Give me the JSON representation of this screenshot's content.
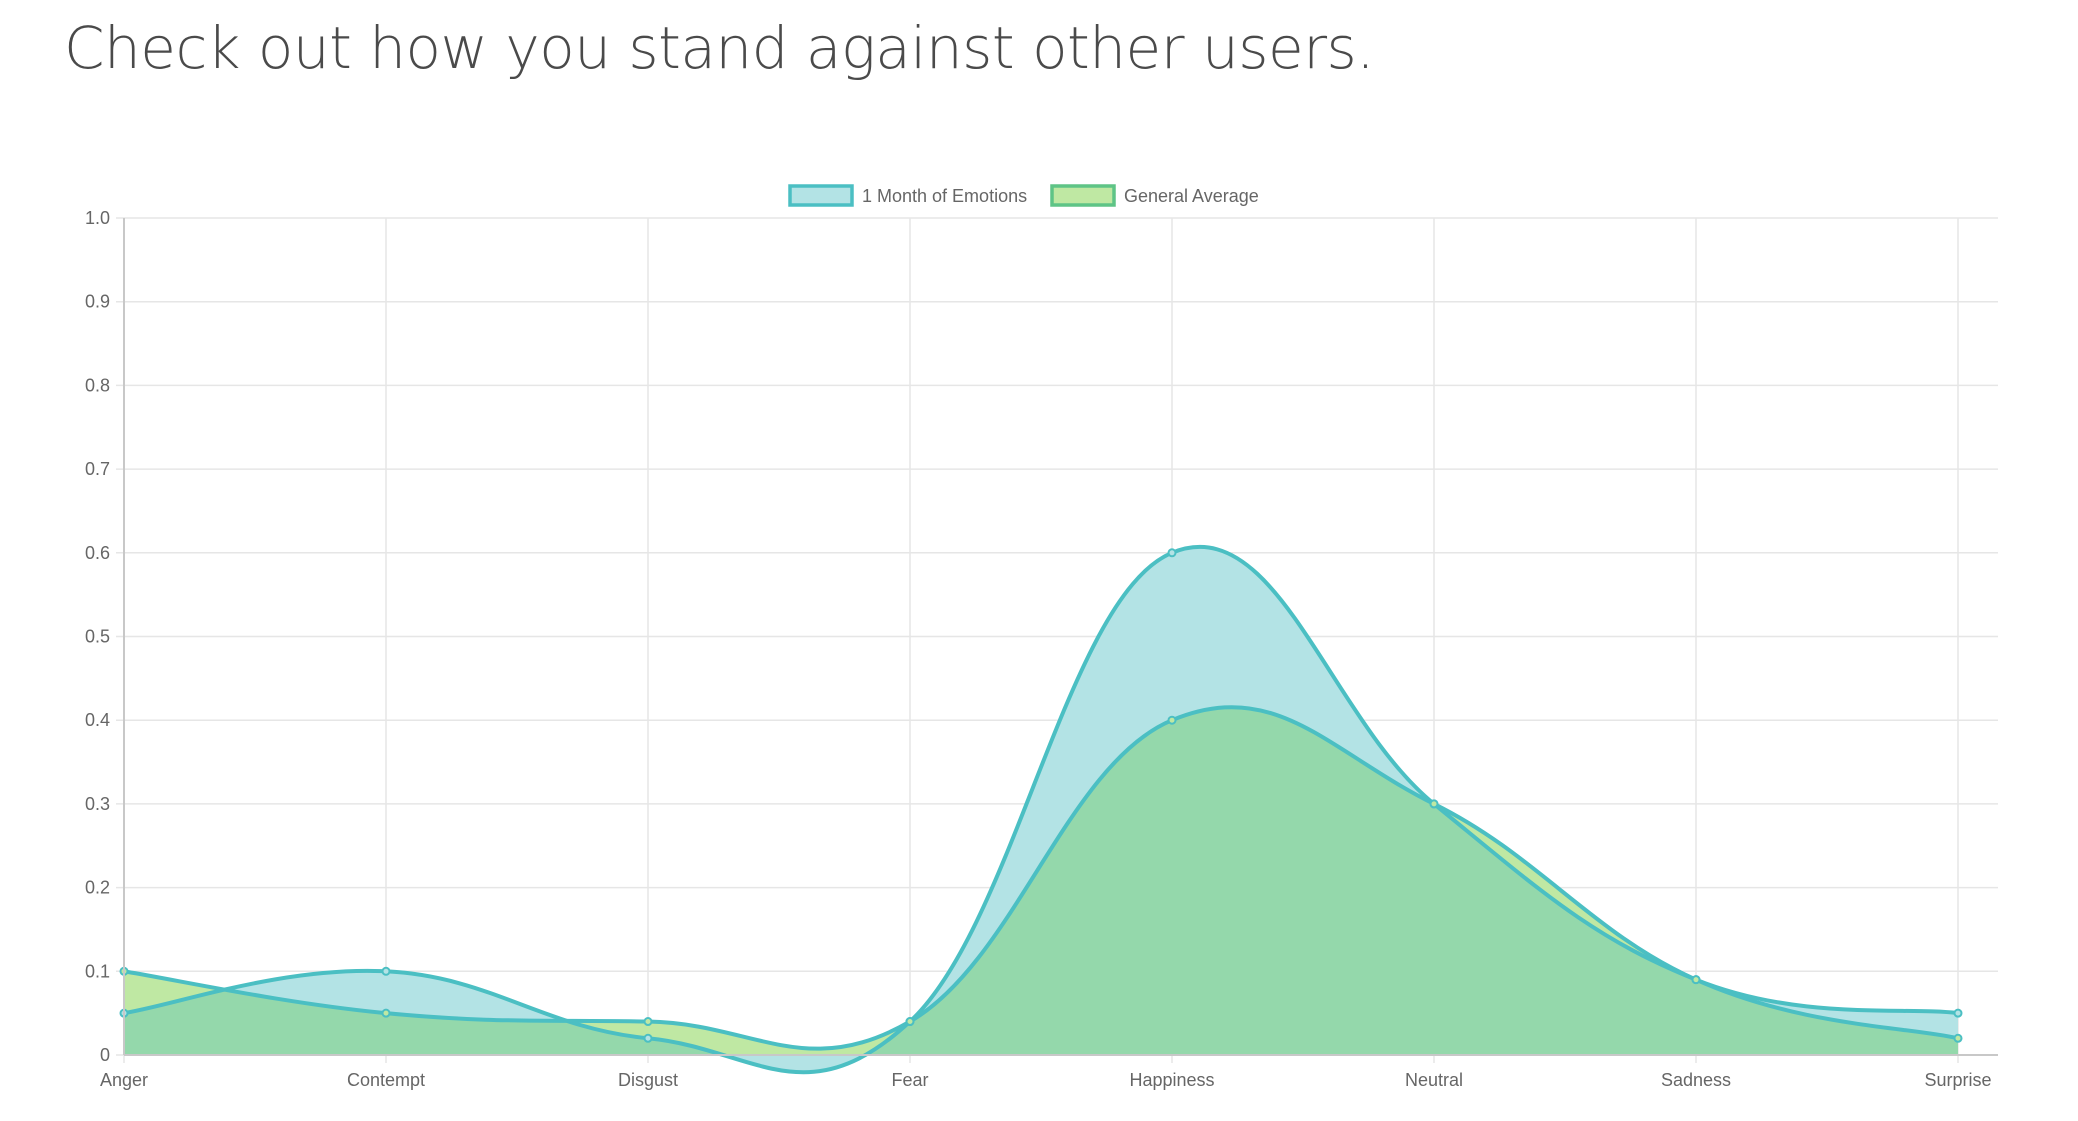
{
  "page": {
    "heading": "Check out how you stand against other users."
  },
  "colors": {
    "series1_line": "#4bbfc3",
    "series1_fill": "#b3e3e5",
    "series2_line": "#4bbfc3",
    "series2_fill": "#bfe8a3",
    "series2_legend_line": "#5ec486",
    "overlap_fill": "#94d8ab",
    "grid": "#e6e6e6",
    "axis": "#c8c8c8",
    "tick_text": "#666666"
  },
  "chart_data": {
    "type": "area",
    "title": "",
    "xlabel": "",
    "ylabel": "",
    "categories": [
      "Anger",
      "Contempt",
      "Disgust",
      "Fear",
      "Happiness",
      "Neutral",
      "Sadness",
      "Surprise"
    ],
    "series": [
      {
        "name": "1 Month of Emotions",
        "values": [
          0.05,
          0.1,
          0.02,
          0.04,
          0.6,
          0.3,
          0.09,
          0.05
        ]
      },
      {
        "name": "General Average",
        "values": [
          0.1,
          0.05,
          0.04,
          0.04,
          0.4,
          0.3,
          0.09,
          0.02
        ]
      }
    ],
    "ylim": [
      0,
      1.0
    ],
    "yticks": [
      "0",
      "0.1",
      "0.2",
      "0.3",
      "0.4",
      "0.5",
      "0.6",
      "0.7",
      "0.8",
      "0.9",
      "1.0"
    ],
    "grid": true,
    "legend_position": "top-center",
    "smooth": true
  }
}
